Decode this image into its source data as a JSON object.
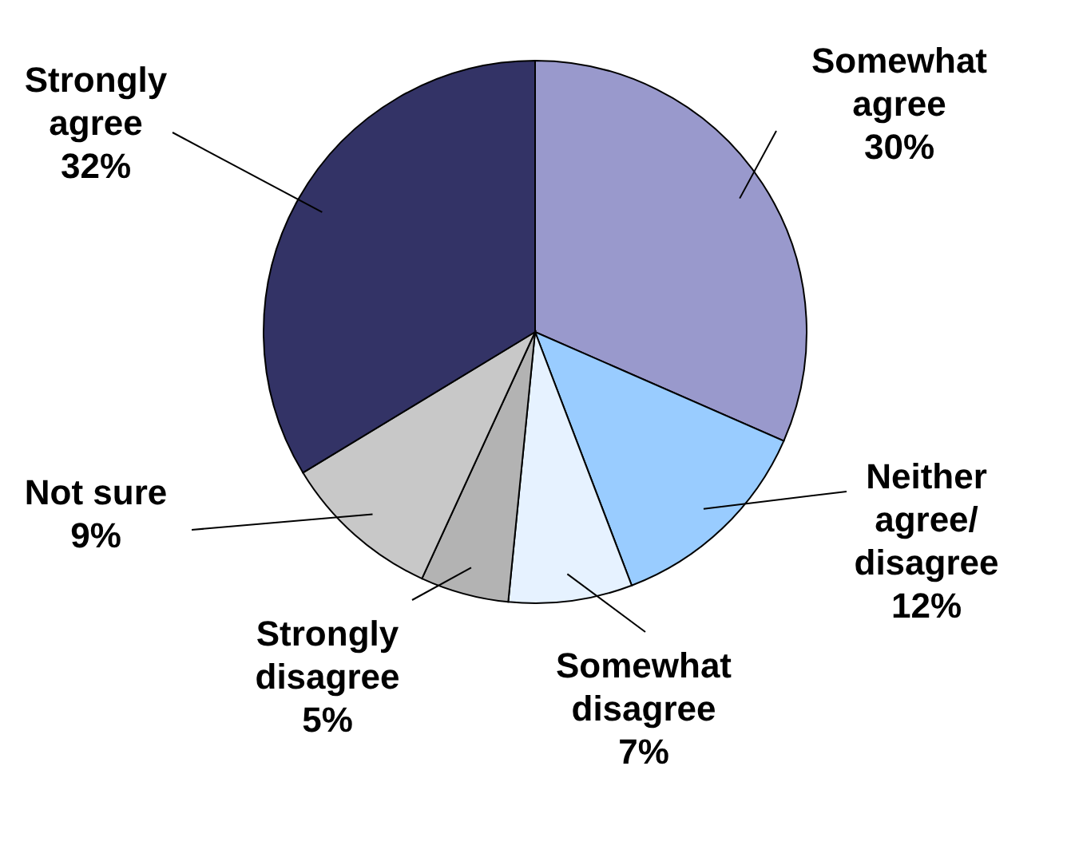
{
  "chart_data": {
    "type": "pie",
    "categories": [
      "Somewhat agree",
      "Neither agree/disagree",
      "Somewhat disagree",
      "Strongly disagree",
      "Not sure",
      "Strongly agree"
    ],
    "values": [
      30,
      12,
      7,
      5,
      9,
      32
    ],
    "value_labels": [
      "30%",
      "12%",
      "7%",
      "5%",
      "9%",
      "32%"
    ],
    "colors": [
      "#9999cc",
      "#99ccff",
      "#e6f2ff",
      "#b3b3b3",
      "#c8c8c8",
      "#333366"
    ]
  }
}
